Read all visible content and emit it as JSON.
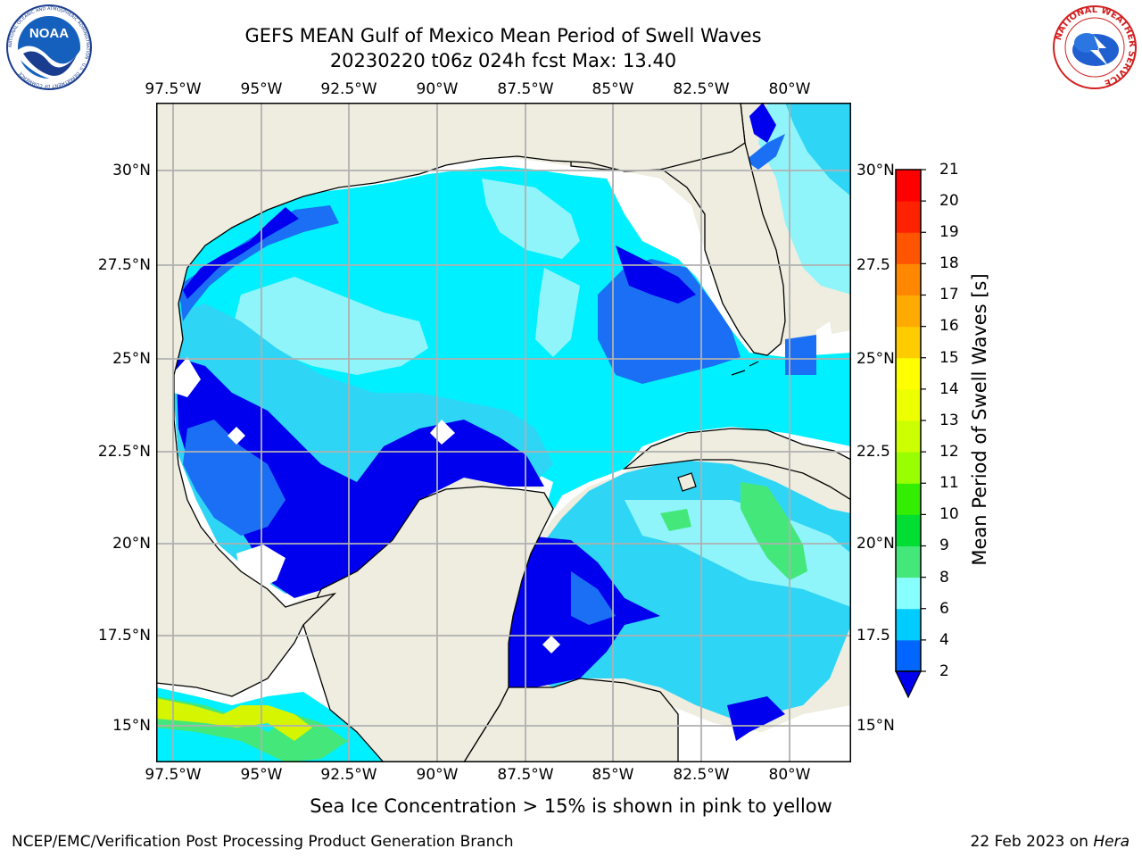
{
  "header": {
    "title_line1": "GEFS MEAN Gulf of Mexico Mean Period of Swell Waves",
    "title_line2": "20230220 t06z 024h fcst   Max: 13.40"
  },
  "logos": {
    "left": "NOAA",
    "left_ring": "NATIONAL OCEANIC AND ATMOSPHERIC ADMINISTRATION · U.S. DEPARTMENT OF COMMERCE",
    "right_ring": "NATIONAL WEATHER SERVICE"
  },
  "axes": {
    "lon_top": [
      "97.5°W",
      "95°W",
      "92.5°W",
      "90°W",
      "87.5°W",
      "85°W",
      "82.5°W",
      "80°W"
    ],
    "lon_bottom": [
      "97.5°W",
      "95°W",
      "92.5°W",
      "90°W",
      "87.5°W",
      "85°W",
      "82.5°W",
      "80°W"
    ],
    "lat_left": [
      "30°N",
      "27.5°N",
      "25°N",
      "22.5°N",
      "20°N",
      "17.5°N",
      "15°N"
    ],
    "lat_right": [
      "30°N",
      "27.5",
      "25°N",
      "22.5",
      "20°N",
      "17.5",
      "15°N"
    ]
  },
  "colorbar": {
    "label": "Mean Period of Swell Waves [s]",
    "ticks": [
      "2",
      "4",
      "6",
      "8",
      "9",
      "10",
      "11",
      "12",
      "13",
      "14",
      "15",
      "16",
      "17",
      "18",
      "19",
      "20",
      "21"
    ],
    "colors": [
      "#0066ff",
      "#00ccff",
      "#00ffff",
      "#44f2ff",
      "#88ffff",
      "#44e87a",
      "#00dd33",
      "#33ee00",
      "#99ff00",
      "#ccff00",
      "#eeff00",
      "#ffff00",
      "#ffcc00",
      "#ffaa00",
      "#ff8800",
      "#ff5500",
      "#ff2200",
      "#ff0000"
    ],
    "under_color": "#0000ee"
  },
  "map_colors": {
    "land": "#eeede0",
    "no_data": "#ffffff",
    "blue_dark": "#0000ee",
    "blue": "#1a6ff5",
    "cyan_mid": "#2fd5f5",
    "cyan": "#00f0ff",
    "cyan_light": "#8ff5fb",
    "green": "#44e87a",
    "yellow_green": "#d5f500"
  },
  "caption": "Sea Ice Concentration > 15% is shown in pink to yellow",
  "footer": {
    "left": "NCEP/EMC/Verification Post Processing Product Generation Branch",
    "right_date": "22 Feb 2023 on",
    "right_host": "Hera"
  }
}
